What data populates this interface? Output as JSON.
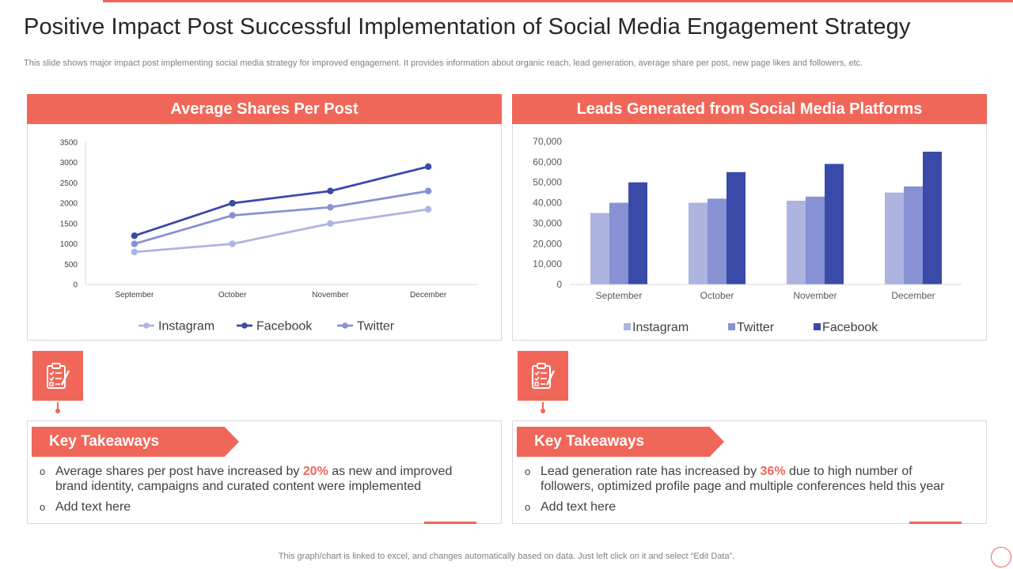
{
  "colors": {
    "accent": "#f0675a",
    "instagram": "#aeb4e0",
    "facebook": "#3a4aa8",
    "twitter": "#8791d4"
  },
  "title": "Positive Impact Post Successful Implementation of Social Media Engagement Strategy",
  "subtitle": "This slide shows major impact post implementing social media strategy for improved engagement. It provides information about organic reach, lead generation, average share per post, new page likes and followers, etc.",
  "left_panel": {
    "header": "Average Shares Per Post"
  },
  "right_panel": {
    "header": "Leads Generated from Social Media Platforms"
  },
  "chart_data": [
    {
      "type": "line",
      "title": "Average Shares Per Post",
      "categories": [
        "September",
        "October",
        "November",
        "December"
      ],
      "y_ticks": [
        "0",
        "500",
        "1000",
        "1500",
        "2000",
        "2500",
        "3000",
        "3500"
      ],
      "ylim": [
        0,
        3500
      ],
      "grid": false,
      "legend_position": "bottom",
      "series": [
        {
          "name": "Instagram",
          "values": [
            800,
            1000,
            1500,
            1850
          ],
          "color": "#aeb4e0"
        },
        {
          "name": "Facebook",
          "values": [
            1200,
            2000,
            2300,
            2900
          ],
          "color": "#3a4aa8"
        },
        {
          "name": "Twitter",
          "values": [
            1000,
            1700,
            1900,
            2300
          ],
          "color": "#8791d4"
        }
      ]
    },
    {
      "type": "bar",
      "title": "Leads Generated from Social Media Platforms",
      "categories": [
        "September",
        "October",
        "November",
        "December"
      ],
      "y_ticks": [
        "0",
        "10,000",
        "20,000",
        "30,000",
        "40,000",
        "50,000",
        "60,000",
        "70,000"
      ],
      "ylim": [
        0,
        70000
      ],
      "grid": false,
      "legend_position": "bottom",
      "series": [
        {
          "name": "Instagram",
          "values": [
            35000,
            40000,
            41000,
            45000
          ],
          "color": "#aeb4e0"
        },
        {
          "name": "Twitter",
          "values": [
            40000,
            42000,
            43000,
            48000
          ],
          "color": "#8791d4"
        },
        {
          "name": "Facebook",
          "values": [
            50000,
            55000,
            59000,
            65000
          ],
          "color": "#3a4aa8"
        }
      ]
    }
  ],
  "takeaways_left": {
    "label": "Key Takeaways",
    "bullet_mark": "o",
    "b1_pre": "Average shares per post have increased by ",
    "b1_hl": "20%",
    "b1_post": " as new and improved brand identity, campaigns and curated content were implemented",
    "b2": "Add text here"
  },
  "takeaways_right": {
    "label": "Key Takeaways",
    "bullet_mark": "o",
    "b1_pre": "Lead generation rate has increased  by ",
    "b1_hl": "36%",
    "b1_post": " due to high number of followers, optimized profile page and multiple conferences held this year",
    "b2": "Add text here"
  },
  "icons": {
    "left": "checklist-clipboard-icon",
    "right": "checklist-clipboard-icon"
  },
  "footer": "This graph/chart is linked to excel,  and changes automatically based on data. Just left click on it and select “Edit Data”."
}
